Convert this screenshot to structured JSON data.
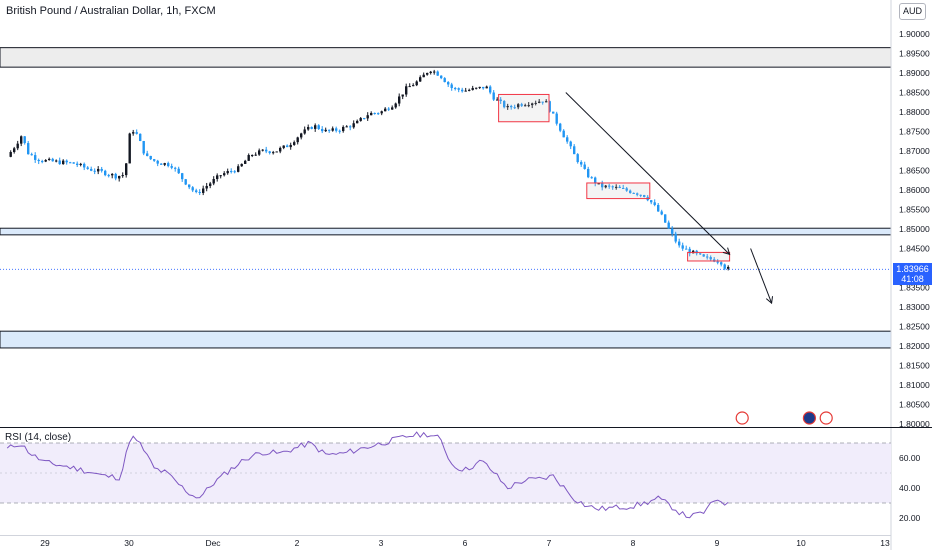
{
  "header": {
    "title": "British Pound / Australian Dollar, 1h, FXCM",
    "currency": "AUD"
  },
  "price_tag": {
    "value": "1.83966",
    "countdown": "41:08"
  },
  "rsi_panel": {
    "label": "RSI (14, close)",
    "ticks": [
      "60.00",
      "40.00",
      "20.00"
    ],
    "band": [
      30,
      70
    ],
    "mid": 50
  },
  "colors": {
    "up": "#131722",
    "down": "#2196f3",
    "zone_fill": "#ededed",
    "blue_zone_fill": "#dbeafb",
    "rsi_line": "#7e57c2",
    "rsi_band": "#f1edfb",
    "box": "#f23645",
    "arrow": "#131722",
    "last_price": "#2962ff"
  },
  "chart_data": {
    "type": "candlestick",
    "title": "British Pound / Australian Dollar, 1h, FXCM",
    "y_ticks": [
      "1.90000",
      "1.89500",
      "1.89000",
      "1.88500",
      "1.88000",
      "1.87500",
      "1.87000",
      "1.86500",
      "1.86000",
      "1.85500",
      "1.85000",
      "1.84500",
      "1.84000",
      "1.83500",
      "1.83000",
      "1.82500",
      "1.82000",
      "1.81500",
      "1.81000",
      "1.80500",
      "1.80000"
    ],
    "ylim": [
      1.8,
      1.903
    ],
    "x_ticks": [
      {
        "label": "29",
        "day": 0
      },
      {
        "label": "30",
        "day": 1
      },
      {
        "label": "Dec",
        "day": 2
      },
      {
        "label": "2",
        "day": 3
      },
      {
        "label": "3",
        "day": 4
      },
      {
        "label": "6",
        "day": 5
      },
      {
        "label": "7",
        "day": 6
      },
      {
        "label": "8",
        "day": 7
      },
      {
        "label": "9",
        "day": 8
      },
      {
        "label": "10",
        "day": 9
      },
      {
        "label": "13",
        "day": 10
      }
    ],
    "last_price": 1.83966,
    "close_points": [
      [
        -0.45,
        1.8685
      ],
      [
        -0.35,
        1.8715
      ],
      [
        -0.28,
        1.874
      ],
      [
        -0.2,
        1.8695
      ],
      [
        -0.1,
        1.868
      ],
      [
        0.0,
        1.8675
      ],
      [
        0.15,
        1.8672
      ],
      [
        0.35,
        1.8668
      ],
      [
        0.5,
        1.8655
      ],
      [
        0.7,
        1.8645
      ],
      [
        0.85,
        1.8635
      ],
      [
        0.95,
        1.864
      ],
      [
        1.02,
        1.876
      ],
      [
        1.1,
        1.874
      ],
      [
        1.2,
        1.8685
      ],
      [
        1.35,
        1.867
      ],
      [
        1.5,
        1.8665
      ],
      [
        1.65,
        1.8625
      ],
      [
        1.8,
        1.859
      ],
      [
        1.95,
        1.8615
      ],
      [
        2.1,
        1.864
      ],
      [
        2.3,
        1.8655
      ],
      [
        2.45,
        1.869
      ],
      [
        2.6,
        1.87
      ],
      [
        2.75,
        1.87
      ],
      [
        2.9,
        1.8715
      ],
      [
        3.05,
        1.8745
      ],
      [
        3.2,
        1.8765
      ],
      [
        3.35,
        1.875
      ],
      [
        3.5,
        1.8755
      ],
      [
        3.7,
        1.877
      ],
      [
        3.85,
        1.8795
      ],
      [
        4.0,
        1.88
      ],
      [
        4.15,
        1.882
      ],
      [
        4.3,
        1.886
      ],
      [
        4.45,
        1.888
      ],
      [
        4.58,
        1.891
      ],
      [
        4.7,
        1.8895
      ],
      [
        4.85,
        1.886
      ],
      [
        5.0,
        1.8855
      ],
      [
        5.15,
        1.886
      ],
      [
        5.25,
        1.8865
      ],
      [
        5.35,
        1.8835
      ],
      [
        5.5,
        1.881
      ],
      [
        5.65,
        1.882
      ],
      [
        5.8,
        1.8825
      ],
      [
        5.95,
        1.883
      ],
      [
        6.05,
        1.879
      ],
      [
        6.15,
        1.875
      ],
      [
        6.3,
        1.869
      ],
      [
        6.45,
        1.864
      ],
      [
        6.6,
        1.861
      ],
      [
        6.8,
        1.8605
      ],
      [
        7.0,
        1.8595
      ],
      [
        7.15,
        1.8585
      ],
      [
        7.25,
        1.856
      ],
      [
        7.35,
        1.853
      ],
      [
        7.45,
        1.849
      ],
      [
        7.55,
        1.8455
      ],
      [
        7.7,
        1.844
      ],
      [
        7.85,
        1.8425
      ],
      [
        8.0,
        1.842
      ],
      [
        8.05,
        1.8415
      ],
      [
        8.1,
        1.84
      ],
      [
        8.15,
        1.83966
      ]
    ],
    "zones": [
      {
        "name": "supply",
        "from": 1.8915,
        "to": 1.8965,
        "fill": "#ededed"
      },
      {
        "name": "mid",
        "from": 1.8485,
        "to": 1.8502,
        "fill": "#dbeafb"
      },
      {
        "name": "demand",
        "from": 1.8195,
        "to": 1.8238,
        "fill": "#dbeafb"
      }
    ],
    "boxes": [
      {
        "x0": 5.4,
        "x1": 6.0,
        "y0": 1.8775,
        "y1": 1.8845
      },
      {
        "x0": 6.45,
        "x1": 7.2,
        "y0": 1.8578,
        "y1": 1.8618
      },
      {
        "x0": 7.65,
        "x1": 8.15,
        "y0": 1.8418,
        "y1": 1.844
      }
    ],
    "arrows": [
      {
        "x0": 6.2,
        "y0": 1.885,
        "x1": 8.15,
        "y1": 1.8435
      },
      {
        "x0": 8.4,
        "y0": 1.845,
        "x1": 8.65,
        "y1": 1.831
      }
    ],
    "events": [
      {
        "day": 8.3,
        "icon": "flag-uk-icon"
      },
      {
        "day": 9.1,
        "icon": "flag-au-icon"
      },
      {
        "day": 9.3,
        "icon": "flag-uk-icon"
      }
    ],
    "rsi": {
      "name": "RSI (14, close)",
      "ylim": [
        10,
        80
      ],
      "points": [
        [
          -0.45,
          66
        ],
        [
          -0.3,
          70
        ],
        [
          -0.15,
          62
        ],
        [
          0.0,
          57
        ],
        [
          0.2,
          55
        ],
        [
          0.45,
          52
        ],
        [
          0.7,
          48
        ],
        [
          0.9,
          47
        ],
        [
          1.02,
          75
        ],
        [
          1.15,
          68
        ],
        [
          1.3,
          53
        ],
        [
          1.45,
          50
        ],
        [
          1.6,
          42
        ],
        [
          1.75,
          35
        ],
        [
          1.85,
          34
        ],
        [
          2.0,
          43
        ],
        [
          2.2,
          52
        ],
        [
          2.4,
          60
        ],
        [
          2.6,
          64
        ],
        [
          2.8,
          63
        ],
        [
          3.0,
          67
        ],
        [
          3.15,
          70
        ],
        [
          3.35,
          62
        ],
        [
          3.55,
          63
        ],
        [
          3.75,
          66
        ],
        [
          3.95,
          69
        ],
        [
          4.15,
          72
        ],
        [
          4.35,
          75
        ],
        [
          4.55,
          76
        ],
        [
          4.7,
          73
        ],
        [
          4.85,
          55
        ],
        [
          5.0,
          52
        ],
        [
          5.2,
          58
        ],
        [
          5.35,
          50
        ],
        [
          5.5,
          40
        ],
        [
          5.7,
          45
        ],
        [
          5.9,
          46
        ],
        [
          6.05,
          48
        ],
        [
          6.15,
          42
        ],
        [
          6.3,
          33
        ],
        [
          6.45,
          28
        ],
        [
          6.6,
          26
        ],
        [
          6.8,
          27
        ],
        [
          7.0,
          28
        ],
        [
          7.15,
          30
        ],
        [
          7.3,
          33
        ],
        [
          7.45,
          28
        ],
        [
          7.6,
          22
        ],
        [
          7.7,
          21
        ],
        [
          7.85,
          24
        ],
        [
          8.0,
          33
        ],
        [
          8.1,
          30
        ],
        [
          8.15,
          28
        ]
      ]
    }
  }
}
